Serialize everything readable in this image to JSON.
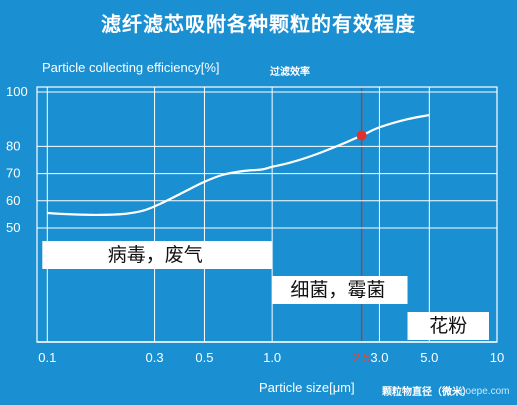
{
  "chart_data": {
    "type": "line",
    "title": "滤纤滤芯吸附各种颗粒的有效程度",
    "ylabel": "Particle collecting efficiency[%]",
    "ylabel_cn": "过滤效率",
    "xlabel": "Particle size[μm]",
    "xlabel_cn": "颗粒物直径（微米）",
    "x_scale": "log",
    "xlim": [
      0.09,
      10
    ],
    "ylim": [
      40,
      100
    ],
    "x_ticks": [
      0.1,
      0.3,
      0.5,
      1.0,
      2.5,
      3.0,
      5.0,
      10
    ],
    "x_tick_labels": [
      "0.1",
      "0.3",
      "0.5",
      "1.0",
      "2.5",
      "3.0",
      "5.0",
      "10"
    ],
    "y_ticks": [
      50,
      60,
      70,
      80,
      100
    ],
    "y_tick_labels": [
      "50",
      "60",
      "70",
      "80",
      "100"
    ],
    "grid": true,
    "series": [
      {
        "x": [
          0.1,
          0.13,
          0.17,
          0.22,
          0.27,
          0.32,
          0.4,
          0.5,
          0.6,
          0.75,
          0.9,
          1.0,
          1.2,
          1.5,
          2.0,
          2.5,
          3.0,
          4.0,
          5.0
        ],
        "values": [
          55.5,
          55,
          54.8,
          55.2,
          56.5,
          59,
          63,
          67,
          69.5,
          71,
          71.5,
          72.5,
          74,
          76.5,
          80.5,
          84,
          87,
          90,
          91.5
        ]
      }
    ],
    "highlight_point": {
      "x": 2.5,
      "y": 84
    },
    "annotations": [
      {
        "text": "病毒，废气",
        "x_from": 0.1,
        "x_to": 1.0
      },
      {
        "text": "细菌，霉菌",
        "x_from": 1.0,
        "x_to": 4.0
      },
      {
        "text": "花粉",
        "x_from": 4.0,
        "x_to": 10
      }
    ],
    "colors": {
      "background": "#1a8fd1",
      "line": "#ffffff",
      "marker": "#e0322c",
      "highlight_line": "#c9302c"
    }
  },
  "watermark": "goepe.com"
}
